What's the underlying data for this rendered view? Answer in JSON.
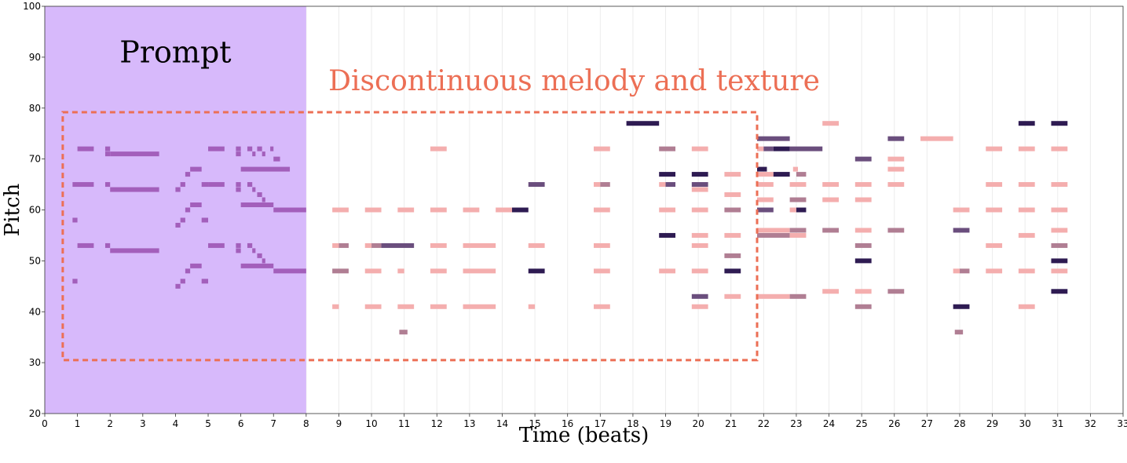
{
  "chart_data": {
    "type": "piano-roll",
    "xlabel": "Time (beats)",
    "ylabel": "Pitch",
    "xlim": [
      0,
      33
    ],
    "ylim": [
      20,
      100
    ],
    "xticks": [
      0,
      1,
      2,
      3,
      4,
      5,
      6,
      7,
      8,
      9,
      10,
      11,
      12,
      13,
      14,
      15,
      16,
      17,
      18,
      19,
      20,
      21,
      22,
      23,
      24,
      25,
      26,
      27,
      28,
      29,
      30,
      31,
      32,
      33
    ],
    "yticks": [
      20,
      30,
      40,
      50,
      60,
      70,
      80,
      90,
      100
    ],
    "grid": "vertical-only",
    "prompt_region": {
      "label": "Prompt",
      "x": [
        0,
        8
      ],
      "color": "#d7b9fb"
    },
    "annotation": {
      "label": "Discontinuous melody and texture",
      "color": "#ec6f55",
      "box_x": [
        0.55,
        21.8
      ],
      "box_y": [
        30.5,
        79.2
      ]
    },
    "note_colors": {
      "prompt": "#a35fbb",
      "light": "#f4aeae",
      "mid": "#b07e93",
      "dark": "#6a4e7d",
      "darkest": "#2e1b52"
    },
    "notes": [
      {
        "p": 65,
        "s": 0.85,
        "e": 1.5,
        "c": "prompt"
      },
      {
        "p": 72,
        "s": 1.0,
        "e": 1.5,
        "c": "prompt"
      },
      {
        "p": 58,
        "s": 0.85,
        "e": 1.0,
        "c": "prompt"
      },
      {
        "p": 53,
        "s": 1.0,
        "e": 1.5,
        "c": "prompt"
      },
      {
        "p": 46,
        "s": 0.85,
        "e": 1.0,
        "c": "prompt"
      },
      {
        "p": 72,
        "s": 1.85,
        "e": 2.0,
        "c": "prompt"
      },
      {
        "p": 71,
        "s": 1.85,
        "e": 2.0,
        "c": "prompt"
      },
      {
        "p": 71,
        "s": 2.0,
        "e": 3.5,
        "c": "prompt"
      },
      {
        "p": 65,
        "s": 1.85,
        "e": 2.0,
        "c": "prompt"
      },
      {
        "p": 64,
        "s": 2.0,
        "e": 3.5,
        "c": "prompt"
      },
      {
        "p": 53,
        "s": 1.85,
        "e": 2.0,
        "c": "prompt"
      },
      {
        "p": 52,
        "s": 2.0,
        "e": 3.5,
        "c": "prompt"
      },
      {
        "p": 64,
        "s": 4.0,
        "e": 4.15,
        "c": "prompt"
      },
      {
        "p": 65,
        "s": 4.15,
        "e": 4.3,
        "c": "prompt"
      },
      {
        "p": 67,
        "s": 4.3,
        "e": 4.45,
        "c": "prompt"
      },
      {
        "p": 68,
        "s": 4.45,
        "e": 4.8,
        "c": "prompt"
      },
      {
        "p": 65,
        "s": 4.8,
        "e": 5.0,
        "c": "prompt"
      },
      {
        "p": 72,
        "s": 5.0,
        "e": 5.5,
        "c": "prompt"
      },
      {
        "p": 65,
        "s": 5.0,
        "e": 5.5,
        "c": "prompt"
      },
      {
        "p": 57,
        "s": 4.0,
        "e": 4.15,
        "c": "prompt"
      },
      {
        "p": 58,
        "s": 4.15,
        "e": 4.3,
        "c": "prompt"
      },
      {
        "p": 60,
        "s": 4.3,
        "e": 4.45,
        "c": "prompt"
      },
      {
        "p": 61,
        "s": 4.45,
        "e": 4.8,
        "c": "prompt"
      },
      {
        "p": 58,
        "s": 4.8,
        "e": 5.0,
        "c": "prompt"
      },
      {
        "p": 45,
        "s": 4.0,
        "e": 4.15,
        "c": "prompt"
      },
      {
        "p": 46,
        "s": 4.15,
        "e": 4.3,
        "c": "prompt"
      },
      {
        "p": 48,
        "s": 4.3,
        "e": 4.45,
        "c": "prompt"
      },
      {
        "p": 49,
        "s": 4.45,
        "e": 4.8,
        "c": "prompt"
      },
      {
        "p": 46,
        "s": 4.8,
        "e": 5.0,
        "c": "prompt"
      },
      {
        "p": 53,
        "s": 5.0,
        "e": 5.5,
        "c": "prompt"
      },
      {
        "p": 72,
        "s": 5.85,
        "e": 6.0,
        "c": "prompt"
      },
      {
        "p": 71,
        "s": 5.85,
        "e": 6.0,
        "c": "prompt"
      },
      {
        "p": 72,
        "s": 6.2,
        "e": 6.35,
        "c": "prompt"
      },
      {
        "p": 71,
        "s": 6.35,
        "e": 6.45,
        "c": "prompt"
      },
      {
        "p": 72,
        "s": 6.5,
        "e": 6.65,
        "c": "prompt"
      },
      {
        "p": 71,
        "s": 6.65,
        "e": 6.75,
        "c": "prompt"
      },
      {
        "p": 72,
        "s": 6.9,
        "e": 7.0,
        "c": "prompt"
      },
      {
        "p": 70,
        "s": 7.0,
        "e": 7.2,
        "c": "prompt"
      },
      {
        "p": 68,
        "s": 6.0,
        "e": 7.5,
        "c": "prompt"
      },
      {
        "p": 65,
        "s": 5.85,
        "e": 6.0,
        "c": "prompt"
      },
      {
        "p": 64,
        "s": 5.85,
        "e": 6.0,
        "c": "prompt"
      },
      {
        "p": 65,
        "s": 6.2,
        "e": 6.35,
        "c": "prompt"
      },
      {
        "p": 64,
        "s": 6.35,
        "e": 6.45,
        "c": "prompt"
      },
      {
        "p": 63,
        "s": 6.5,
        "e": 6.65,
        "c": "prompt"
      },
      {
        "p": 62,
        "s": 6.65,
        "e": 6.75,
        "c": "prompt"
      },
      {
        "p": 61,
        "s": 6.0,
        "e": 7.0,
        "c": "prompt"
      },
      {
        "p": 60,
        "s": 7.0,
        "e": 8.0,
        "c": "prompt"
      },
      {
        "p": 53,
        "s": 5.85,
        "e": 6.0,
        "c": "prompt"
      },
      {
        "p": 52,
        "s": 5.85,
        "e": 6.0,
        "c": "prompt"
      },
      {
        "p": 53,
        "s": 6.2,
        "e": 6.35,
        "c": "prompt"
      },
      {
        "p": 52,
        "s": 6.35,
        "e": 6.45,
        "c": "prompt"
      },
      {
        "p": 51,
        "s": 6.5,
        "e": 6.65,
        "c": "prompt"
      },
      {
        "p": 50,
        "s": 6.65,
        "e": 6.75,
        "c": "prompt"
      },
      {
        "p": 49,
        "s": 6.0,
        "e": 7.0,
        "c": "prompt"
      },
      {
        "p": 48,
        "s": 7.0,
        "e": 8.0,
        "c": "prompt"
      },
      {
        "p": 60,
        "s": 8.8,
        "e": 9.3,
        "c": "light"
      },
      {
        "p": 53,
        "s": 8.8,
        "e": 9.0,
        "c": "light"
      },
      {
        "p": 53,
        "s": 9.0,
        "e": 9.3,
        "c": "mid"
      },
      {
        "p": 48,
        "s": 8.8,
        "e": 9.3,
        "c": "mid"
      },
      {
        "p": 41,
        "s": 8.8,
        "e": 9.0,
        "c": "light"
      },
      {
        "p": 60,
        "s": 9.8,
        "e": 10.3,
        "c": "light"
      },
      {
        "p": 53,
        "s": 9.8,
        "e": 10.0,
        "c": "light"
      },
      {
        "p": 53,
        "s": 10.0,
        "e": 10.3,
        "c": "mid"
      },
      {
        "p": 53,
        "s": 10.3,
        "e": 11.3,
        "c": "dark"
      },
      {
        "p": 48,
        "s": 9.8,
        "e": 10.3,
        "c": "light"
      },
      {
        "p": 41,
        "s": 9.8,
        "e": 10.3,
        "c": "light"
      },
      {
        "p": 60,
        "s": 10.8,
        "e": 11.3,
        "c": "light"
      },
      {
        "p": 48,
        "s": 10.8,
        "e": 11.0,
        "c": "light"
      },
      {
        "p": 41,
        "s": 10.8,
        "e": 11.3,
        "c": "light"
      },
      {
        "p": 36,
        "s": 10.85,
        "e": 11.1,
        "c": "mid"
      },
      {
        "p": 72,
        "s": 11.8,
        "e": 12.3,
        "c": "light"
      },
      {
        "p": 60,
        "s": 11.8,
        "e": 12.3,
        "c": "light"
      },
      {
        "p": 53,
        "s": 11.8,
        "e": 12.3,
        "c": "light"
      },
      {
        "p": 48,
        "s": 11.8,
        "e": 12.3,
        "c": "light"
      },
      {
        "p": 41,
        "s": 11.8,
        "e": 12.3,
        "c": "light"
      },
      {
        "p": 60,
        "s": 12.8,
        "e": 13.3,
        "c": "light"
      },
      {
        "p": 53,
        "s": 12.8,
        "e": 13.8,
        "c": "light"
      },
      {
        "p": 48,
        "s": 12.8,
        "e": 13.8,
        "c": "light"
      },
      {
        "p": 41,
        "s": 12.8,
        "e": 13.8,
        "c": "light"
      },
      {
        "p": 60,
        "s": 13.8,
        "e": 14.3,
        "c": "light"
      },
      {
        "p": 60,
        "s": 14.3,
        "e": 14.8,
        "c": "darkest"
      },
      {
        "p": 65,
        "s": 14.8,
        "e": 15.3,
        "c": "dark"
      },
      {
        "p": 53,
        "s": 14.8,
        "e": 15.3,
        "c": "light"
      },
      {
        "p": 48,
        "s": 14.8,
        "e": 15.3,
        "c": "darkest"
      },
      {
        "p": 41,
        "s": 14.8,
        "e": 15.0,
        "c": "light"
      },
      {
        "p": 72,
        "s": 16.8,
        "e": 17.3,
        "c": "light"
      },
      {
        "p": 65,
        "s": 16.8,
        "e": 17.0,
        "c": "light"
      },
      {
        "p": 65,
        "s": 17.0,
        "e": 17.3,
        "c": "mid"
      },
      {
        "p": 60,
        "s": 16.8,
        "e": 17.3,
        "c": "light"
      },
      {
        "p": 53,
        "s": 16.8,
        "e": 17.3,
        "c": "light"
      },
      {
        "p": 48,
        "s": 16.8,
        "e": 17.3,
        "c": "light"
      },
      {
        "p": 41,
        "s": 16.8,
        "e": 17.3,
        "c": "light"
      },
      {
        "p": 77,
        "s": 17.8,
        "e": 18.8,
        "c": "darkest"
      },
      {
        "p": 72,
        "s": 18.8,
        "e": 19.3,
        "c": "mid"
      },
      {
        "p": 67,
        "s": 18.8,
        "e": 19.3,
        "c": "darkest"
      },
      {
        "p": 65,
        "s": 18.8,
        "e": 19.0,
        "c": "light"
      },
      {
        "p": 65,
        "s": 19.0,
        "e": 19.3,
        "c": "dark"
      },
      {
        "p": 60,
        "s": 18.8,
        "e": 19.3,
        "c": "light"
      },
      {
        "p": 55,
        "s": 18.8,
        "e": 19.3,
        "c": "darkest"
      },
      {
        "p": 48,
        "s": 18.8,
        "e": 19.3,
        "c": "light"
      },
      {
        "p": 72,
        "s": 19.8,
        "e": 20.3,
        "c": "light"
      },
      {
        "p": 67,
        "s": 19.8,
        "e": 20.3,
        "c": "darkest"
      },
      {
        "p": 65,
        "s": 19.8,
        "e": 20.3,
        "c": "dark"
      },
      {
        "p": 64,
        "s": 19.8,
        "e": 20.3,
        "c": "light"
      },
      {
        "p": 60,
        "s": 19.8,
        "e": 20.3,
        "c": "light"
      },
      {
        "p": 55,
        "s": 19.8,
        "e": 20.3,
        "c": "light"
      },
      {
        "p": 53,
        "s": 19.8,
        "e": 20.3,
        "c": "light"
      },
      {
        "p": 48,
        "s": 19.8,
        "e": 20.3,
        "c": "light"
      },
      {
        "p": 43,
        "s": 19.8,
        "e": 20.3,
        "c": "dark"
      },
      {
        "p": 41,
        "s": 19.8,
        "e": 20.3,
        "c": "light"
      },
      {
        "p": 67,
        "s": 20.8,
        "e": 21.3,
        "c": "light"
      },
      {
        "p": 63,
        "s": 20.8,
        "e": 21.3,
        "c": "light"
      },
      {
        "p": 60,
        "s": 20.8,
        "e": 21.3,
        "c": "mid"
      },
      {
        "p": 55,
        "s": 20.8,
        "e": 21.3,
        "c": "light"
      },
      {
        "p": 51,
        "s": 20.8,
        "e": 21.3,
        "c": "mid"
      },
      {
        "p": 48,
        "s": 20.8,
        "e": 21.3,
        "c": "darkest"
      },
      {
        "p": 43,
        "s": 20.8,
        "e": 21.3,
        "c": "light"
      },
      {
        "p": 74,
        "s": 21.8,
        "e": 22.8,
        "c": "dark"
      },
      {
        "p": 72,
        "s": 21.8,
        "e": 22.0,
        "c": "light"
      },
      {
        "p": 72,
        "s": 22.0,
        "e": 22.3,
        "c": "dark"
      },
      {
        "p": 72,
        "s": 22.3,
        "e": 22.8,
        "c": "darkest"
      },
      {
        "p": 72,
        "s": 22.8,
        "e": 23.8,
        "c": "dark"
      },
      {
        "p": 68,
        "s": 21.8,
        "e": 22.1,
        "c": "darkest"
      },
      {
        "p": 67,
        "s": 21.8,
        "e": 22.3,
        "c": "light"
      },
      {
        "p": 67,
        "s": 22.3,
        "e": 22.8,
        "c": "darkest"
      },
      {
        "p": 68,
        "s": 22.9,
        "e": 23.05,
        "c": "light"
      },
      {
        "p": 67,
        "s": 23.0,
        "e": 23.3,
        "c": "mid"
      },
      {
        "p": 65,
        "s": 21.8,
        "e": 22.3,
        "c": "light"
      },
      {
        "p": 65,
        "s": 22.8,
        "e": 23.3,
        "c": "light"
      },
      {
        "p": 62,
        "s": 21.8,
        "e": 22.3,
        "c": "light"
      },
      {
        "p": 62,
        "s": 22.8,
        "e": 23.3,
        "c": "mid"
      },
      {
        "p": 60,
        "s": 21.8,
        "e": 22.3,
        "c": "dark"
      },
      {
        "p": 60,
        "s": 22.8,
        "e": 23.0,
        "c": "light"
      },
      {
        "p": 60,
        "s": 23.0,
        "e": 23.3,
        "c": "darkest"
      },
      {
        "p": 56,
        "s": 21.8,
        "e": 22.8,
        "c": "light"
      },
      {
        "p": 56,
        "s": 22.8,
        "e": 23.3,
        "c": "mid"
      },
      {
        "p": 55,
        "s": 21.8,
        "e": 22.8,
        "c": "mid"
      },
      {
        "p": 55,
        "s": 22.8,
        "e": 23.3,
        "c": "light"
      },
      {
        "p": 43,
        "s": 21.8,
        "e": 22.8,
        "c": "light"
      },
      {
        "p": 43,
        "s": 22.8,
        "e": 23.3,
        "c": "mid"
      },
      {
        "p": 77,
        "s": 23.8,
        "e": 24.3,
        "c": "light"
      },
      {
        "p": 65,
        "s": 23.8,
        "e": 24.3,
        "c": "light"
      },
      {
        "p": 62,
        "s": 23.8,
        "e": 24.3,
        "c": "light"
      },
      {
        "p": 56,
        "s": 23.8,
        "e": 24.3,
        "c": "mid"
      },
      {
        "p": 44,
        "s": 23.8,
        "e": 24.3,
        "c": "light"
      },
      {
        "p": 70,
        "s": 24.8,
        "e": 25.3,
        "c": "dark"
      },
      {
        "p": 65,
        "s": 24.8,
        "e": 25.3,
        "c": "light"
      },
      {
        "p": 62,
        "s": 24.8,
        "e": 25.3,
        "c": "light"
      },
      {
        "p": 56,
        "s": 24.8,
        "e": 25.3,
        "c": "light"
      },
      {
        "p": 53,
        "s": 24.8,
        "e": 25.3,
        "c": "mid"
      },
      {
        "p": 50,
        "s": 24.8,
        "e": 25.3,
        "c": "darkest"
      },
      {
        "p": 44,
        "s": 24.8,
        "e": 25.3,
        "c": "light"
      },
      {
        "p": 41,
        "s": 24.8,
        "e": 25.3,
        "c": "mid"
      },
      {
        "p": 74,
        "s": 25.8,
        "e": 26.3,
        "c": "dark"
      },
      {
        "p": 70,
        "s": 25.8,
        "e": 26.3,
        "c": "light"
      },
      {
        "p": 68,
        "s": 25.8,
        "e": 26.3,
        "c": "light"
      },
      {
        "p": 65,
        "s": 25.8,
        "e": 26.3,
        "c": "light"
      },
      {
        "p": 56,
        "s": 25.8,
        "e": 26.3,
        "c": "mid"
      },
      {
        "p": 44,
        "s": 25.8,
        "e": 26.3,
        "c": "mid"
      },
      {
        "p": 74,
        "s": 26.8,
        "e": 27.8,
        "c": "light"
      },
      {
        "p": 60,
        "s": 27.8,
        "e": 28.3,
        "c": "light"
      },
      {
        "p": 56,
        "s": 27.8,
        "e": 28.3,
        "c": "dark"
      },
      {
        "p": 48,
        "s": 27.8,
        "e": 28.0,
        "c": "light"
      },
      {
        "p": 48,
        "s": 28.0,
        "e": 28.3,
        "c": "mid"
      },
      {
        "p": 41,
        "s": 27.8,
        "e": 28.3,
        "c": "darkest"
      },
      {
        "p": 36,
        "s": 27.85,
        "e": 28.1,
        "c": "mid"
      },
      {
        "p": 72,
        "s": 28.8,
        "e": 29.3,
        "c": "light"
      },
      {
        "p": 65,
        "s": 28.8,
        "e": 29.3,
        "c": "light"
      },
      {
        "p": 60,
        "s": 28.8,
        "e": 29.3,
        "c": "light"
      },
      {
        "p": 53,
        "s": 28.8,
        "e": 29.3,
        "c": "light"
      },
      {
        "p": 48,
        "s": 28.8,
        "e": 29.3,
        "c": "light"
      },
      {
        "p": 77,
        "s": 29.8,
        "e": 30.3,
        "c": "darkest"
      },
      {
        "p": 72,
        "s": 29.8,
        "e": 30.3,
        "c": "light"
      },
      {
        "p": 65,
        "s": 29.8,
        "e": 30.3,
        "c": "light"
      },
      {
        "p": 60,
        "s": 29.8,
        "e": 30.3,
        "c": "light"
      },
      {
        "p": 55,
        "s": 29.8,
        "e": 30.3,
        "c": "light"
      },
      {
        "p": 48,
        "s": 29.8,
        "e": 30.3,
        "c": "light"
      },
      {
        "p": 41,
        "s": 29.8,
        "e": 30.3,
        "c": "light"
      },
      {
        "p": 77,
        "s": 30.8,
        "e": 31.3,
        "c": "darkest"
      },
      {
        "p": 72,
        "s": 30.8,
        "e": 31.3,
        "c": "light"
      },
      {
        "p": 65,
        "s": 30.8,
        "e": 31.3,
        "c": "light"
      },
      {
        "p": 60,
        "s": 30.8,
        "e": 31.3,
        "c": "light"
      },
      {
        "p": 56,
        "s": 30.8,
        "e": 31.3,
        "c": "light"
      },
      {
        "p": 53,
        "s": 30.8,
        "e": 31.3,
        "c": "mid"
      },
      {
        "p": 50,
        "s": 30.8,
        "e": 31.3,
        "c": "darkest"
      },
      {
        "p": 48,
        "s": 30.8,
        "e": 31.3,
        "c": "light"
      },
      {
        "p": 44,
        "s": 30.8,
        "e": 31.3,
        "c": "darkest"
      }
    ]
  }
}
